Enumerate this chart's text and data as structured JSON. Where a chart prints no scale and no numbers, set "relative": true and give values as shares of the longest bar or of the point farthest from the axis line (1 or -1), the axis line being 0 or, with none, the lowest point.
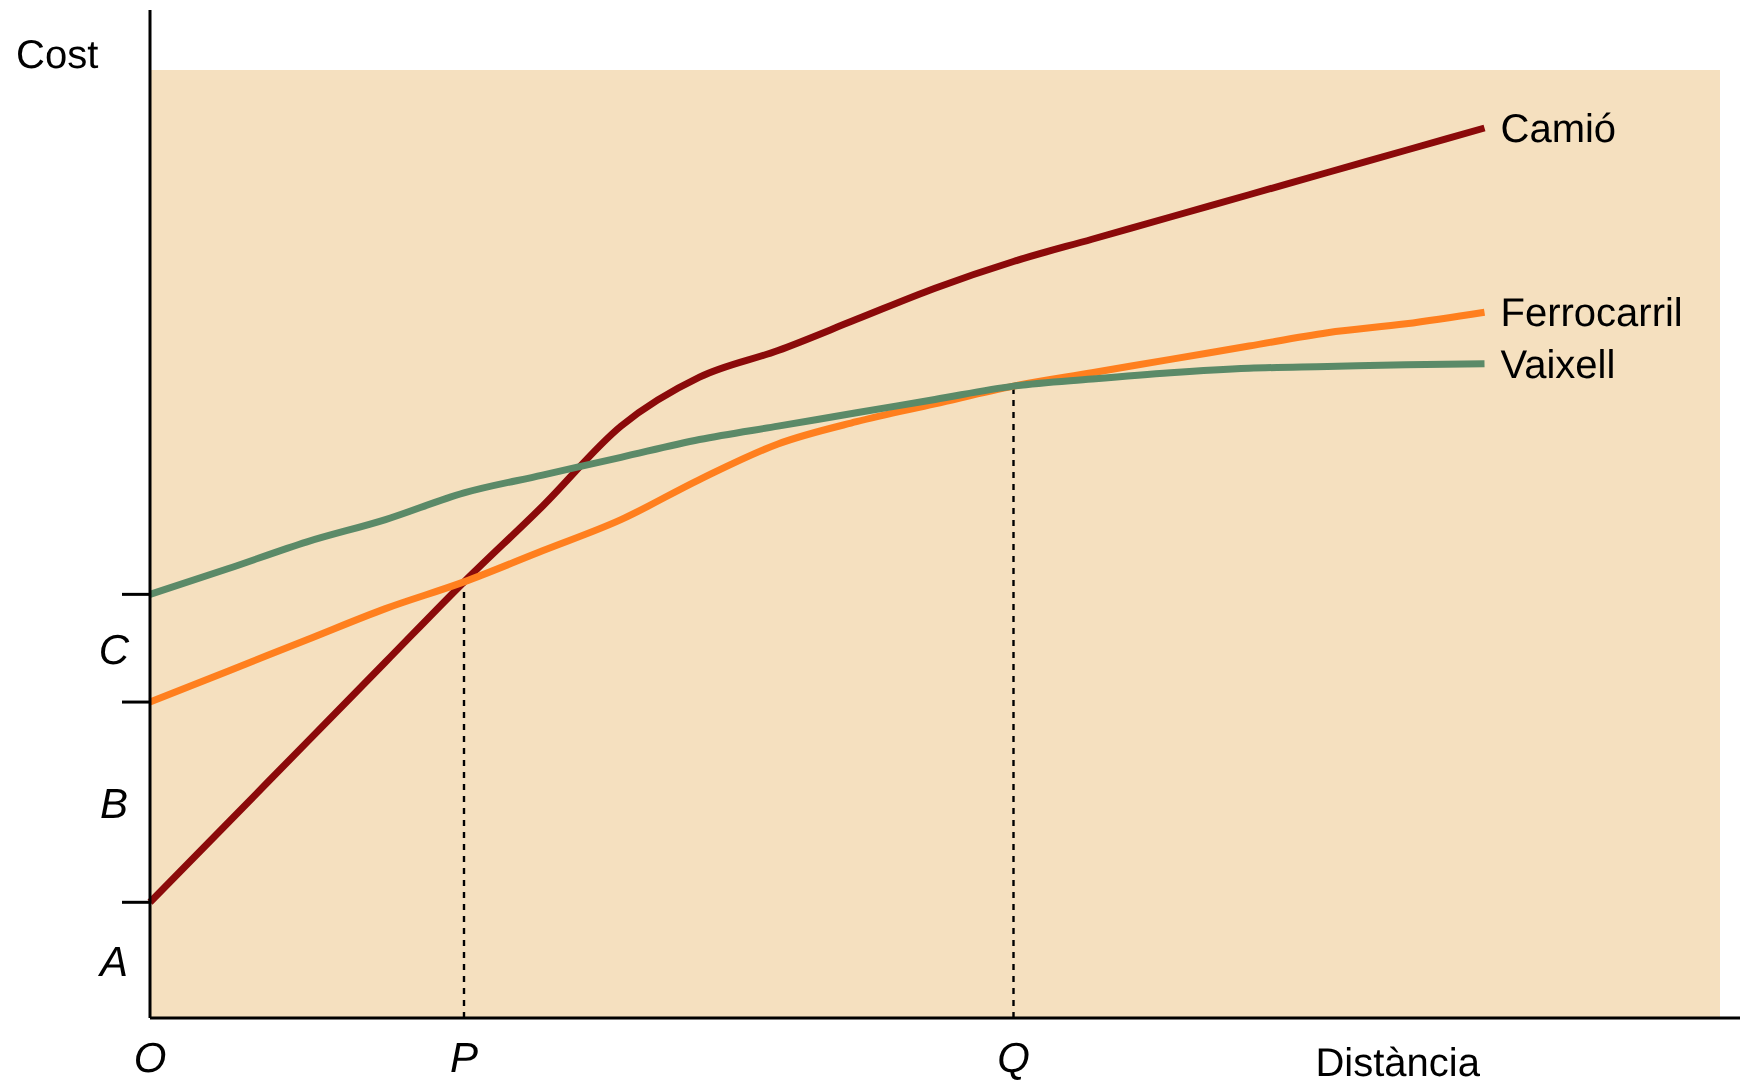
{
  "chart_data": {
    "type": "line",
    "relative": true,
    "xlabel": "Distància",
    "ylabel": "Cost",
    "categories": [
      "O",
      null,
      null,
      null,
      "P",
      null,
      null,
      null,
      null,
      null,
      null,
      "Q",
      null,
      null,
      null,
      null,
      null,
      null,
      null,
      null,
      null
    ],
    "series": [
      {
        "name": "Camió",
        "color": "#8b0a0a",
        "values": [
          0.13,
          0.22,
          0.31,
          0.4,
          0.49,
          0.575,
          0.665,
          0.72,
          0.75,
          0.785,
          0.82,
          0.85,
          0.875,
          0.9,
          0.925,
          0.95,
          0.975,
          1.0,
          null,
          null,
          null
        ]
      },
      {
        "name": "Ferrocarril",
        "color": "#ff7f1e",
        "values": [
          0.355,
          0.39,
          0.425,
          0.46,
          0.49,
          0.525,
          0.56,
          0.605,
          0.645,
          0.67,
          0.69,
          0.71,
          0.725,
          0.74,
          0.755,
          0.77,
          0.78,
          0.793,
          null,
          null,
          null
        ]
      },
      {
        "name": "Vaixell",
        "color": "#5b8a68",
        "values": [
          0.476,
          0.505,
          0.535,
          0.56,
          0.59,
          0.61,
          0.63,
          0.65,
          0.665,
          0.68,
          0.695,
          0.71,
          0.718,
          0.725,
          0.73,
          0.732,
          0.734,
          0.735,
          null,
          null,
          null
        ]
      }
    ],
    "ref_lines": [
      {
        "axis": "x",
        "value": "P",
        "line_style": "dotted"
      },
      {
        "axis": "x",
        "value": "Q",
        "line_style": "dotted"
      }
    ],
    "annotations": [
      "A",
      "B",
      "C"
    ]
  }
}
